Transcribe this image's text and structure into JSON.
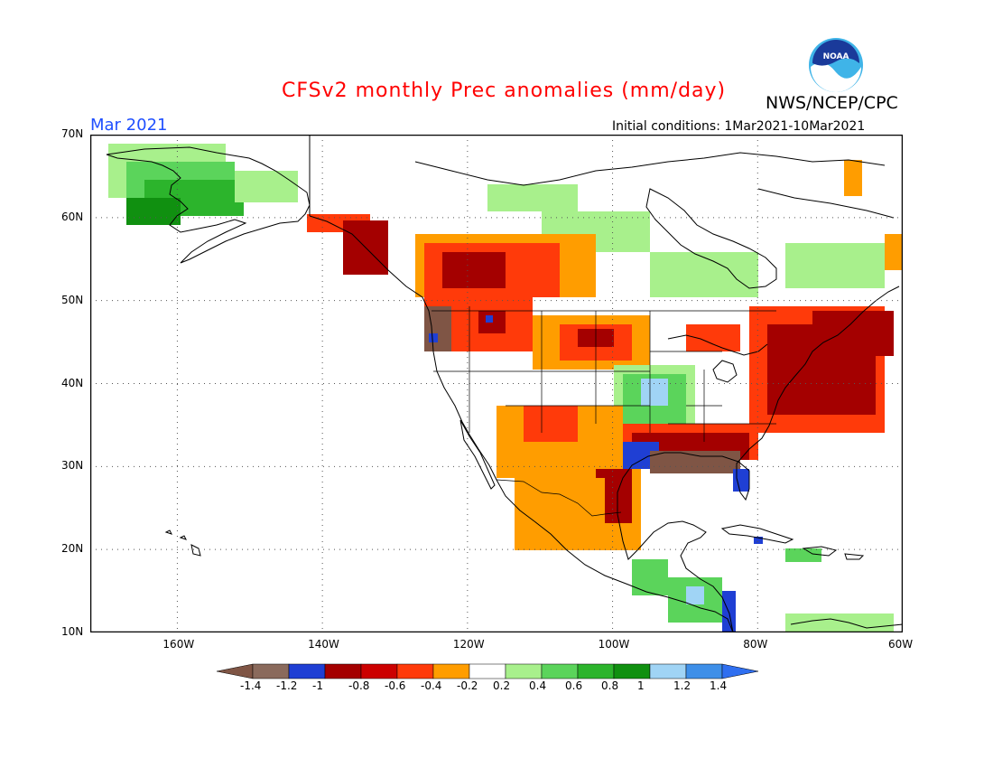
{
  "title": "CFSv2 monthly Prec anomalies (mm/day)",
  "org": "NWS/NCEP/CPC",
  "month": "Mar 2021",
  "initial_conditions": "Initial conditions: 1Mar2021-10Mar2021",
  "logo_text": "NOAA",
  "colors": {
    "title": "#ff0000",
    "month": "#1f4fff"
  },
  "map": {
    "lat_labels": [
      "70N",
      "60N",
      "50N",
      "40N",
      "30N",
      "20N",
      "10N"
    ],
    "lon_labels": [
      "160W",
      "140W",
      "120W",
      "100W",
      "80W",
      "60W"
    ],
    "lat_range": [
      10,
      70
    ],
    "lon_range": [
      -172,
      -60
    ]
  },
  "colorbar": {
    "bins": [
      {
        "color": "#7f5545"
      },
      {
        "color": "#8a6a5c"
      },
      {
        "color": "#1f3fd4"
      },
      {
        "color": "#a40000"
      },
      {
        "color": "#cc0000"
      },
      {
        "color": "#ff3a0a"
      },
      {
        "color": "#ff9d00"
      },
      {
        "color": "#ffffff"
      },
      {
        "color": "#a8f08c"
      },
      {
        "color": "#5bd45b"
      },
      {
        "color": "#2cb42c"
      },
      {
        "color": "#109010"
      },
      {
        "color": "#a0d4f5"
      },
      {
        "color": "#3e8fe8"
      },
      {
        "color": "#2f6ff0"
      }
    ],
    "labels": [
      "-1.4",
      "-1.2",
      "-1",
      "-0.8",
      "-0.6",
      "-0.4",
      "-0.2",
      "0.2",
      "0.4",
      "0.6",
      "0.8",
      "1",
      "1.2",
      "1.4"
    ]
  }
}
